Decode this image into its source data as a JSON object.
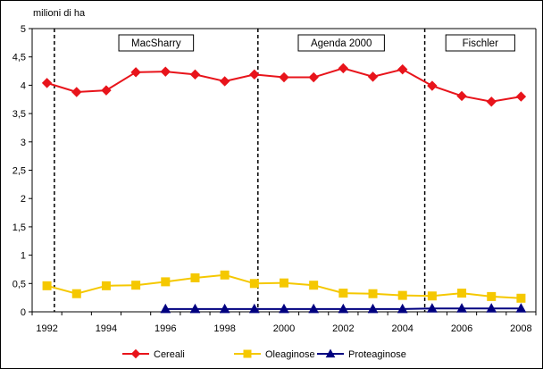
{
  "chart_data": {
    "type": "line",
    "ylabel": "milioni di ha",
    "ylim": [
      0,
      5
    ],
    "y_ticks": [
      "0",
      "0,5",
      "1",
      "1,5",
      "2",
      "2,5",
      "3",
      "3,5",
      "4",
      "4,5",
      "5"
    ],
    "y_tick_values": [
      0,
      0.5,
      1,
      1.5,
      2,
      2.5,
      3,
      3.5,
      4,
      4.5,
      5
    ],
    "x": [
      1992,
      1993,
      1994,
      1995,
      1996,
      1997,
      1998,
      1999,
      2000,
      2001,
      2002,
      2003,
      2004,
      2005,
      2006,
      2007,
      2008
    ],
    "x_tick_labels": [
      "1992",
      "1994",
      "1996",
      "1998",
      "2000",
      "2002",
      "2004",
      "2006",
      "2008"
    ],
    "x_tick_values": [
      1992,
      1994,
      1996,
      1998,
      2000,
      2002,
      2004,
      2006,
      2008
    ],
    "grid": false,
    "legend_position": "bottom",
    "periods": [
      {
        "label": "MacSharry",
        "start": 1992.25,
        "end": 1999.12
      },
      {
        "label": "Agenda 2000",
        "start": 1999.12,
        "end": 2004.75
      },
      {
        "label": "Fischler",
        "start": 2004.75,
        "end": 2008.5
      }
    ],
    "series": [
      {
        "name": "Cereali",
        "color": "#e8141b",
        "marker": "diamond",
        "values": [
          4.04,
          3.88,
          3.91,
          4.23,
          4.24,
          4.19,
          4.07,
          4.19,
          4.14,
          4.14,
          4.3,
          4.15,
          4.28,
          3.99,
          3.81,
          3.71,
          3.8
        ]
      },
      {
        "name": "Oleaginose",
        "color": "#f5c800",
        "marker": "square",
        "values": [
          0.46,
          0.32,
          0.46,
          0.47,
          0.53,
          0.6,
          0.65,
          0.5,
          0.51,
          0.47,
          0.33,
          0.32,
          0.29,
          0.28,
          0.33,
          0.27,
          0.24
        ]
      },
      {
        "name": "Proteaginose",
        "color": "#000080",
        "marker": "triangle",
        "values": [
          null,
          null,
          null,
          null,
          0.05,
          0.05,
          0.05,
          0.05,
          0.05,
          0.05,
          0.05,
          0.05,
          0.05,
          0.06,
          0.06,
          0.06,
          0.06
        ]
      }
    ]
  }
}
